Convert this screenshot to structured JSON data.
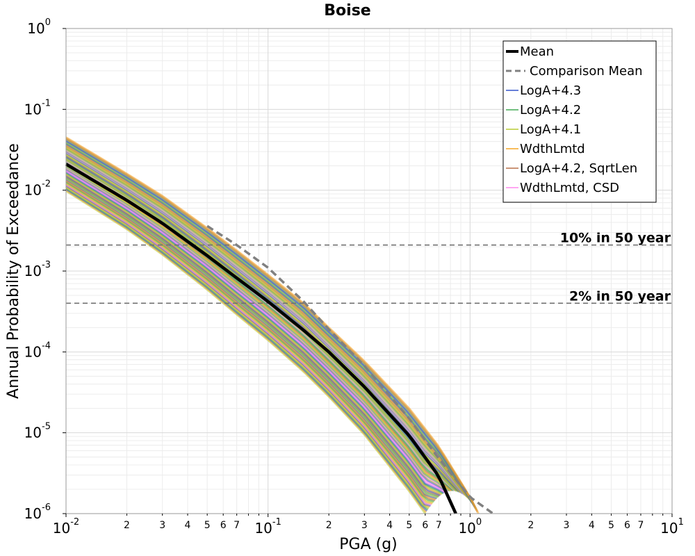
{
  "chart_data": {
    "type": "line",
    "title": "Boise",
    "xlabel": "PGA (g)",
    "ylabel": "Annual Probability of Exceedance",
    "x_scale": "log",
    "y_scale": "log",
    "xlim": [
      0.01,
      10
    ],
    "ylim": [
      1e-06,
      1
    ],
    "grid": true,
    "legend_position": "top-right",
    "x_major_ticks": [
      {
        "base": "10",
        "exp": "-2"
      },
      {
        "base": "10",
        "exp": "-1"
      },
      {
        "base": "10",
        "exp": "0"
      },
      {
        "base": "10",
        "exp": "1"
      }
    ],
    "x_minor_tick_labels": [
      "2",
      "3",
      "4",
      "5",
      "6",
      "7"
    ],
    "y_major_ticks": [
      {
        "base": "10",
        "exp": "-6"
      },
      {
        "base": "10",
        "exp": "-5"
      },
      {
        "base": "10",
        "exp": "-4"
      },
      {
        "base": "10",
        "exp": "-3"
      },
      {
        "base": "10",
        "exp": "-2"
      },
      {
        "base": "10",
        "exp": "-1"
      },
      {
        "base": "10",
        "exp": "0"
      }
    ],
    "series": [
      {
        "name": "Mean",
        "color": "#000000",
        "style": "solid-thick",
        "x": [
          0.01,
          0.02,
          0.03,
          0.05,
          0.07,
          0.1,
          0.15,
          0.2,
          0.3,
          0.5,
          0.7,
          0.85
        ],
        "y": [
          0.021,
          0.0075,
          0.0039,
          0.00155,
          0.00082,
          0.00042,
          0.000185,
          0.0001,
          3.7e-05,
          9.2e-06,
          2.9e-06,
          1e-06
        ]
      },
      {
        "name": "Comparison Mean",
        "color": "#808080",
        "style": "dashed",
        "x": [
          0.05,
          0.07,
          0.1,
          0.15,
          0.2,
          0.3,
          0.5,
          0.7,
          1.0,
          1.3
        ],
        "y": [
          0.0036,
          0.0021,
          0.0011,
          0.00042,
          0.00019,
          6.7e-05,
          1.5e-05,
          4.8e-06,
          1.6e-06,
          1e-06
        ]
      }
    ],
    "branch_bands": [
      {
        "name": "LogA+4.3",
        "color": "#3355cc"
      },
      {
        "name": "LogA+4.2",
        "color": "#44aa55"
      },
      {
        "name": "LogA+4.1",
        "color": "#b8cc33"
      },
      {
        "name": "WdthLmtd",
        "color": "#f5a623"
      },
      {
        "name": "LogA+4.2, SqrtLen",
        "color": "#b8704a"
      },
      {
        "name": "WdthLmtd, CSD",
        "color": "#ff88ee"
      }
    ],
    "band_upper": {
      "x": [
        0.01,
        0.02,
        0.03,
        0.05,
        0.07,
        0.1,
        0.15,
        0.2,
        0.3,
        0.5,
        0.7,
        1.0,
        1.1
      ],
      "y": [
        0.045,
        0.016,
        0.0085,
        0.0034,
        0.0018,
        0.0009,
        0.0004,
        0.0002,
        7.7e-05,
        2e-05,
        6.8e-06,
        1.6e-06,
        1e-06
      ]
    },
    "band_lower": {
      "x": [
        0.01,
        0.02,
        0.03,
        0.05,
        0.07,
        0.1,
        0.15,
        0.2,
        0.3,
        0.5,
        0.6
      ],
      "y": [
        0.0098,
        0.0033,
        0.0016,
        0.00059,
        0.00029,
        0.00014,
        5.7e-05,
        2.8e-05,
        9.5e-06,
        1.9e-06,
        1e-06
      ]
    },
    "reference_lines": [
      {
        "label": "10% in 50 year",
        "y": 0.0021
      },
      {
        "label": "2% in 50 year",
        "y": 0.0004
      }
    ]
  }
}
